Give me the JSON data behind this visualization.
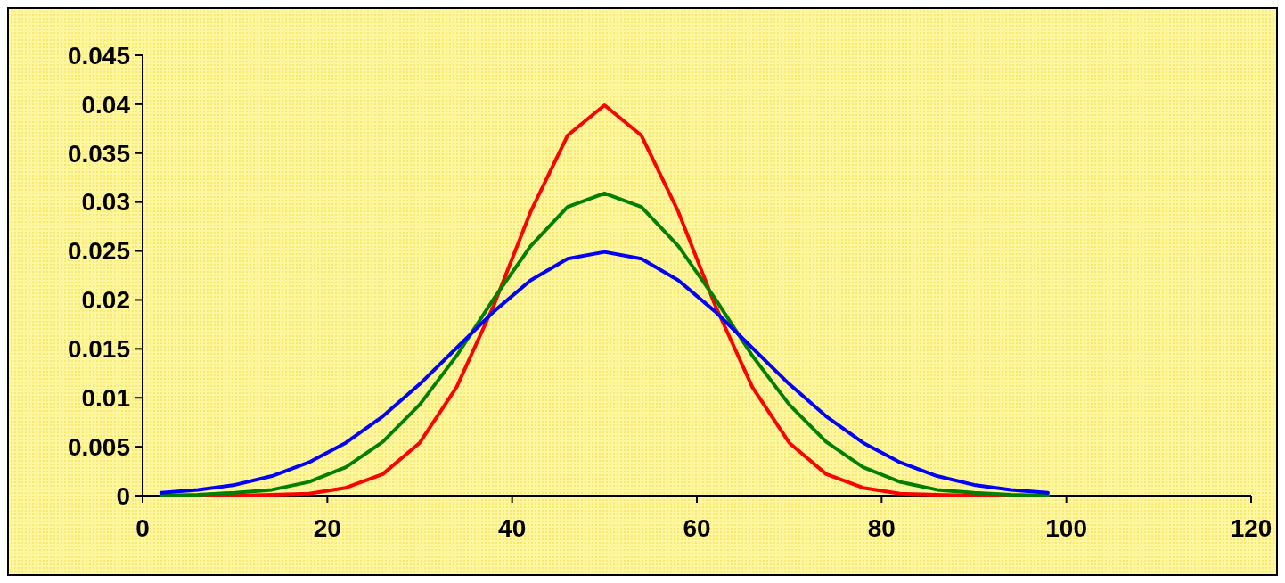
{
  "chart_data": {
    "type": "line",
    "x": [
      2,
      6,
      10,
      14,
      18,
      22,
      26,
      30,
      34,
      38,
      42,
      46,
      50,
      54,
      58,
      62,
      66,
      70,
      74,
      78,
      82,
      86,
      90,
      94,
      98
    ],
    "series": [
      {
        "color": "#ff0000",
        "values": [
          0,
          0,
          0,
          0.0001,
          0.0002,
          0.0008,
          0.0022,
          0.0054,
          0.0111,
          0.0194,
          0.029,
          0.0368,
          0.0399,
          0.0368,
          0.029,
          0.0194,
          0.0111,
          0.0054,
          0.0022,
          0.0008,
          0.0002,
          0.0001,
          0,
          0,
          0
        ]
      },
      {
        "color": "#008000",
        "values": [
          0,
          0.0001,
          0.0003,
          0.0006,
          0.0014,
          0.0029,
          0.0055,
          0.0093,
          0.0143,
          0.0201,
          0.0255,
          0.0295,
          0.0309,
          0.0295,
          0.0255,
          0.0201,
          0.0143,
          0.0093,
          0.0055,
          0.0029,
          0.0014,
          0.0006,
          0.0003,
          0.0001,
          0
        ]
      },
      {
        "color": "#0000ff",
        "values": [
          0.0003,
          0.0006,
          0.0011,
          0.002,
          0.0034,
          0.0054,
          0.0081,
          0.0114,
          0.0151,
          0.0188,
          0.022,
          0.0242,
          0.0249,
          0.0242,
          0.022,
          0.0188,
          0.0151,
          0.0114,
          0.0081,
          0.0054,
          0.0034,
          0.002,
          0.0011,
          0.0006,
          0.0003
        ]
      }
    ],
    "xlim": [
      0,
      120
    ],
    "xticks": [
      0,
      20,
      40,
      60,
      80,
      100,
      120
    ],
    "ylim": [
      0,
      0.045
    ],
    "yticks": [
      0,
      0.005,
      0.01,
      0.015,
      0.02,
      0.025,
      0.03,
      0.035,
      0.04,
      0.045
    ],
    "grid": false,
    "marker": "none",
    "line_style": "solid"
  }
}
